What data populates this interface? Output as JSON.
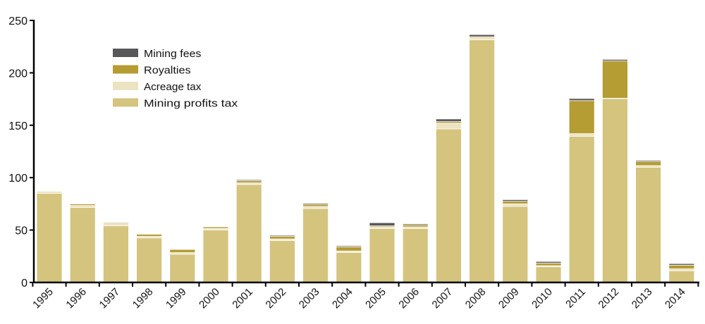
{
  "chart_data": {
    "type": "bar",
    "stacked": true,
    "title": "",
    "xlabel": "",
    "ylabel": "",
    "ylim": [
      0,
      250
    ],
    "yticks": [
      0,
      50,
      100,
      150,
      200,
      250
    ],
    "grid": false,
    "legend_position": "top-left",
    "categories": [
      "1995",
      "1996",
      "1997",
      "1998",
      "1999",
      "2000",
      "2001",
      "2002",
      "2003",
      "2004",
      "2005",
      "2006",
      "2007",
      "2008",
      "2009",
      "2010",
      "2011",
      "2012",
      "2013",
      "2014"
    ],
    "series": [
      {
        "name": "Mining profits tax",
        "color": "#d4c47e",
        "values": [
          85,
          71.5,
          54,
          42.5,
          27,
          50,
          93.5,
          40,
          70.5,
          28.5,
          51.5,
          51.5,
          146.5,
          231.5,
          72.5,
          15,
          139.5,
          175.5,
          110,
          11
        ]
      },
      {
        "name": "Acreage tax",
        "color": "#ece3c0",
        "values": [
          2,
          2,
          2,
          1.5,
          1.5,
          1.5,
          1.5,
          1.5,
          2,
          1.5,
          1.5,
          1.5,
          5.5,
          2,
          2.5,
          1,
          2.5,
          0.3,
          1.5,
          2
        ]
      },
      {
        "name": "Royalties",
        "color": "#b59c33",
        "values": [
          0.5,
          1.5,
          1,
          2,
          3,
          1.5,
          2,
          2.5,
          2,
          4,
          1,
          2,
          1.5,
          1,
          2.5,
          2.5,
          31.5,
          35.5,
          4,
          3.5
        ]
      },
      {
        "name": "Mining fees",
        "color": "#58585a",
        "values": [
          0.5,
          0.5,
          0.5,
          0.5,
          0.5,
          0.5,
          1,
          1,
          1,
          1,
          3,
          1,
          2.5,
          2,
          1.5,
          1.5,
          2,
          1.5,
          1,
          1.5
        ]
      }
    ],
    "legend_order": [
      "Mining fees",
      "Royalties",
      "Acreage tax",
      "Mining profits tax"
    ]
  }
}
